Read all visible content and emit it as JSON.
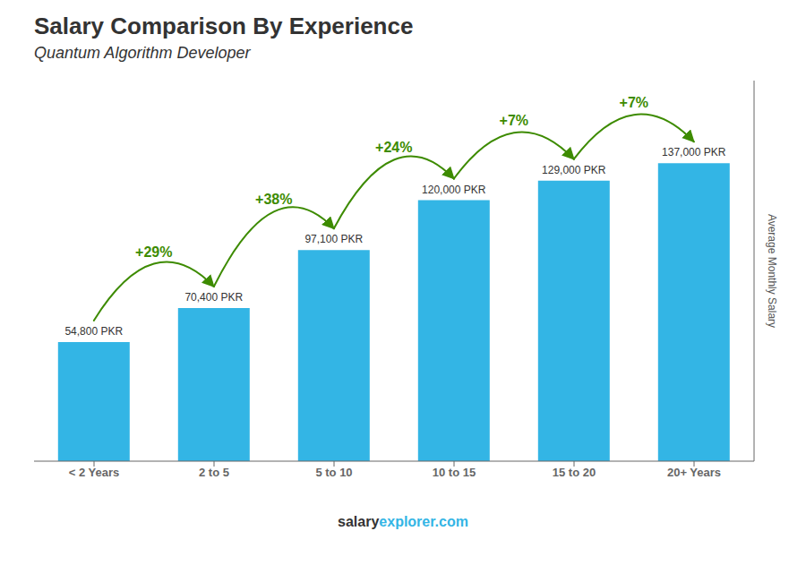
{
  "chart_data": {
    "type": "bar",
    "title": "Salary Comparison By Experience",
    "subtitle": "Quantum Algorithm Developer",
    "ylabel": "Average Monthly Salary",
    "categories": [
      "< 2 Years",
      "2 to 5",
      "5 to 10",
      "10 to 15",
      "15 to 20",
      "20+ Years"
    ],
    "values": [
      54800,
      70400,
      97100,
      120000,
      129000,
      137000
    ],
    "value_labels": [
      "54,800 PKR",
      "70,400 PKR",
      "97,100 PKR",
      "120,000 PKR",
      "129,000 PKR",
      "137,000 PKR"
    ],
    "color": "#33b5e5",
    "ylim": [
      0,
      175000
    ],
    "data_labels": true,
    "tick_labels": "x",
    "grid": false,
    "annotations": [
      {
        "from": "< 2 Years",
        "to": "2 to 5",
        "text": "+29%"
      },
      {
        "from": "2 to 5",
        "to": "5 to 10",
        "text": "+38%"
      },
      {
        "from": "5 to 10",
        "to": "10 to 15",
        "text": "+24%"
      },
      {
        "from": "10 to 15",
        "to": "15 to 20",
        "text": "+7%"
      },
      {
        "from": "15 to 20",
        "to": "20+ Years",
        "text": "+7%"
      }
    ],
    "footer": [
      "salary",
      "explorer.com"
    ]
  }
}
